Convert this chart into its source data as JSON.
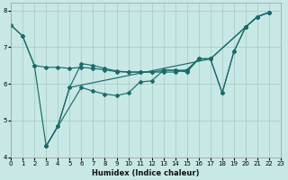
{
  "xlabel": "Humidex (Indice chaleur)",
  "bg_color": "#c8e8e5",
  "grid_color": "#a8c8c5",
  "line_color": "#1a6b6b",
  "xlim": [
    0,
    23
  ],
  "ylim": [
    4,
    8.2
  ],
  "yticks": [
    4,
    5,
    6,
    7,
    8
  ],
  "xticks": [
    0,
    1,
    2,
    3,
    4,
    5,
    6,
    7,
    8,
    9,
    10,
    11,
    12,
    13,
    14,
    15,
    16,
    17,
    18,
    19,
    20,
    21,
    22,
    23
  ],
  "lineA_x": [
    0,
    1,
    2,
    3,
    4,
    5,
    6,
    7,
    8,
    9,
    10,
    11,
    12,
    13,
    14,
    15,
    16,
    17,
    20,
    21,
    22
  ],
  "lineA_y": [
    7.6,
    7.3,
    6.5,
    6.45,
    6.45,
    6.42,
    6.45,
    6.42,
    6.38,
    6.33,
    6.32,
    6.32,
    6.32,
    6.32,
    6.32,
    6.38,
    6.68,
    6.68,
    7.55,
    7.83,
    7.95
  ],
  "lineB_x": [
    0,
    1,
    2,
    3,
    6,
    7,
    8,
    9,
    10,
    11,
    12,
    13,
    14,
    15,
    16,
    17,
    20,
    21,
    22
  ],
  "lineB_y": [
    7.6,
    7.3,
    6.5,
    4.3,
    5.9,
    5.8,
    5.72,
    5.68,
    5.75,
    6.05,
    6.08,
    6.37,
    6.37,
    6.32,
    6.68,
    6.68,
    7.55,
    7.83,
    7.95
  ],
  "lineC_x": [
    3,
    4,
    5,
    6,
    7,
    8,
    9,
    10,
    11,
    12,
    13,
    14,
    15,
    16,
    17,
    18,
    19,
    20,
    21,
    22
  ],
  "lineC_y": [
    4.3,
    4.85,
    5.9,
    6.55,
    6.5,
    6.42,
    6.35,
    6.32,
    6.32,
    6.32,
    6.37,
    6.37,
    6.37,
    6.68,
    6.68,
    5.75,
    6.88,
    7.55,
    7.83,
    7.95
  ],
  "lineD_x": [
    3,
    4,
    5,
    17,
    18,
    19,
    20,
    21,
    22
  ],
  "lineD_y": [
    4.3,
    4.85,
    5.9,
    6.68,
    5.75,
    6.88,
    7.55,
    7.83,
    7.95
  ]
}
